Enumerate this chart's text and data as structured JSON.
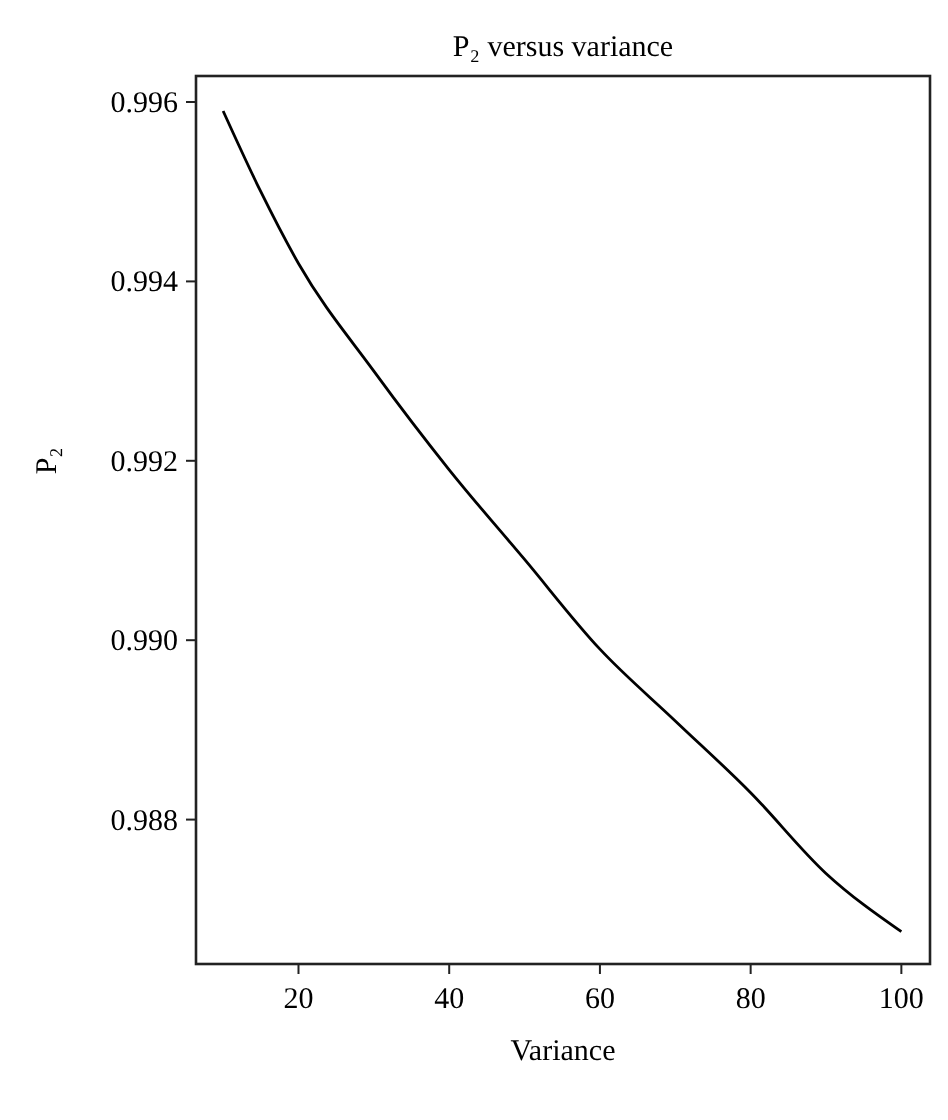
{
  "chart_data": {
    "type": "line",
    "title": "P₂ versus variance",
    "xlabel": "Variance",
    "ylabel": "P₂",
    "x": [
      10,
      15,
      20,
      30,
      40,
      50,
      60,
      70,
      80,
      90,
      100
    ],
    "series": [
      {
        "color": "#000000",
        "values": [
          0.9959,
          0.995,
          0.9942,
          0.993,
          0.9919,
          0.9909,
          0.9899,
          0.9891,
          0.9883,
          0.9874,
          0.98675
        ]
      }
    ],
    "xlim": [
      6.4,
      103.8
    ],
    "ylim": [
      0.98639,
      0.99629
    ],
    "xticks": [
      20,
      40,
      60,
      80,
      100
    ],
    "yticks": [
      0.988,
      {
        "value": 0.99,
        "label": "0.990"
      },
      0.992,
      0.994,
      0.996
    ],
    "grid": false,
    "marker": "none",
    "line_style": "solid"
  }
}
